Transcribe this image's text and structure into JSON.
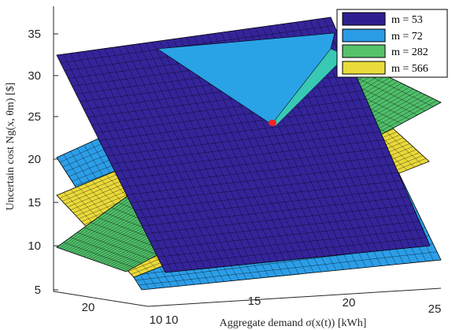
{
  "chart_data": {
    "type": "surface",
    "title": "",
    "xlabel": "Aggregate demand σ(x(t)) [kWh]",
    "ylabel": "Uncertain cost Ng(x, θm) [$]",
    "zlim": [
      5,
      37
    ],
    "z_ticks": [
      "5",
      "10",
      "15",
      "20",
      "25",
      "30",
      "35"
    ],
    "x_ticks": [
      "10",
      "15",
      "20",
      "25"
    ],
    "y_ticks": [
      "20",
      "10"
    ],
    "grid": true,
    "legend_position": "top-right",
    "legend": [
      {
        "label": "m = 53",
        "color": "#2e1f8f"
      },
      {
        "label": "m = 72",
        "color": "#2a9be6"
      },
      {
        "label": "m = 282",
        "color": "#57c26a"
      },
      {
        "label": "m = 566",
        "color": "#e9dc3a"
      }
    ],
    "surfaces": [
      {
        "name": "m = 53",
        "color": "#34249a",
        "corner_costs": [
          32.3,
          36.0,
          10.0,
          6.5
        ]
      },
      {
        "name": "m = 72",
        "color": "#2c9ee8",
        "corner_costs": [
          20.0,
          33.0,
          6.8,
          5.2
        ]
      },
      {
        "name": "m = 282",
        "color": "#4fbf6a",
        "corner_costs": [
          10.0,
          38.0,
          23.0,
          6.5
        ]
      },
      {
        "name": "m = 566",
        "color": "#ead93a",
        "corner_costs": [
          16.0,
          31.0,
          19.5,
          6.0
        ]
      }
    ],
    "marker": {
      "color": "#ff2020",
      "cost": 24.3
    }
  }
}
